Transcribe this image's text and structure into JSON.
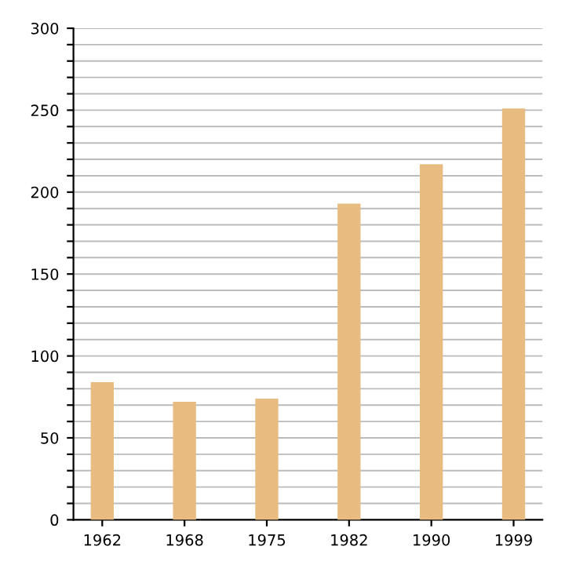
{
  "chart_data": {
    "type": "bar",
    "categories": [
      "1962",
      "1968",
      "1975",
      "1982",
      "1990",
      "1999"
    ],
    "values": [
      84,
      72,
      74,
      193,
      217,
      251
    ],
    "color": "#e8bc80",
    "ylim": [
      0,
      300
    ],
    "yticks": [
      0,
      {
        "value": 10,
        "label": null
      },
      {
        "value": 20,
        "label": null
      },
      {
        "value": 30,
        "label": null
      },
      {
        "value": 40,
        "label": null
      },
      50,
      {
        "value": 60,
        "label": null
      },
      {
        "value": 70,
        "label": null
      },
      {
        "value": 80,
        "label": null
      },
      {
        "value": 90,
        "label": null
      },
      100,
      {
        "value": 110,
        "label": null
      },
      {
        "value": 120,
        "label": null
      },
      {
        "value": 130,
        "label": null
      },
      {
        "value": 140,
        "label": null
      },
      150,
      {
        "value": 160,
        "label": null
      },
      {
        "value": 170,
        "label": null
      },
      {
        "value": 180,
        "label": null
      },
      {
        "value": 190,
        "label": null
      },
      200,
      {
        "value": 210,
        "label": null
      },
      {
        "value": 220,
        "label": null
      },
      {
        "value": 230,
        "label": null
      },
      {
        "value": 240,
        "label": null
      },
      250,
      {
        "value": 260,
        "label": null
      },
      {
        "value": 270,
        "label": null
      },
      {
        "value": 280,
        "label": null
      },
      {
        "value": 290,
        "label": null
      },
      300
    ],
    "grid": "y"
  }
}
